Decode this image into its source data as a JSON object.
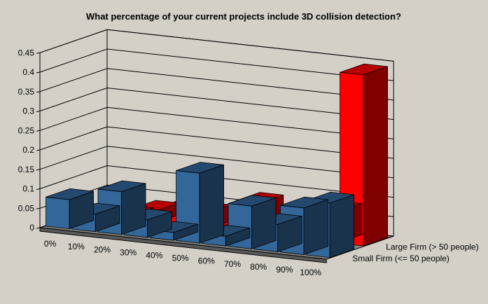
{
  "chart_data": {
    "type": "bar",
    "variant": "3d-column",
    "title": "What percentage of your current projects include 3D collision detection?",
    "categories": [
      "0%",
      "10%",
      "20%",
      "30%",
      "40%",
      "50%",
      "60%",
      "70%",
      "80%",
      "90%",
      "100%"
    ],
    "series": [
      {
        "name": "Small Firm (<= 50 people)",
        "color": "#336699",
        "values": [
          0.075,
          0.045,
          0.11,
          0.045,
          0.02,
          0.18,
          0.025,
          0.11,
          0.07,
          0.12,
          0.14
        ]
      },
      {
        "name": "Large Firm (> 50 people)",
        "color": "#ff0000",
        "values": [
          0.01,
          0.01,
          0.03,
          0.04,
          0.04,
          0.01,
          0.08,
          0.01,
          0.08,
          0.08,
          0.44
        ]
      }
    ],
    "y_ticks": [
      "0",
      "0.05",
      "0.1",
      "0.15",
      "0.2",
      "0.25",
      "0.3",
      "0.35",
      "0.4",
      "0.45"
    ],
    "ylim": [
      0,
      0.45
    ],
    "grid": true,
    "legend": "series labels along depth axis (right)"
  }
}
